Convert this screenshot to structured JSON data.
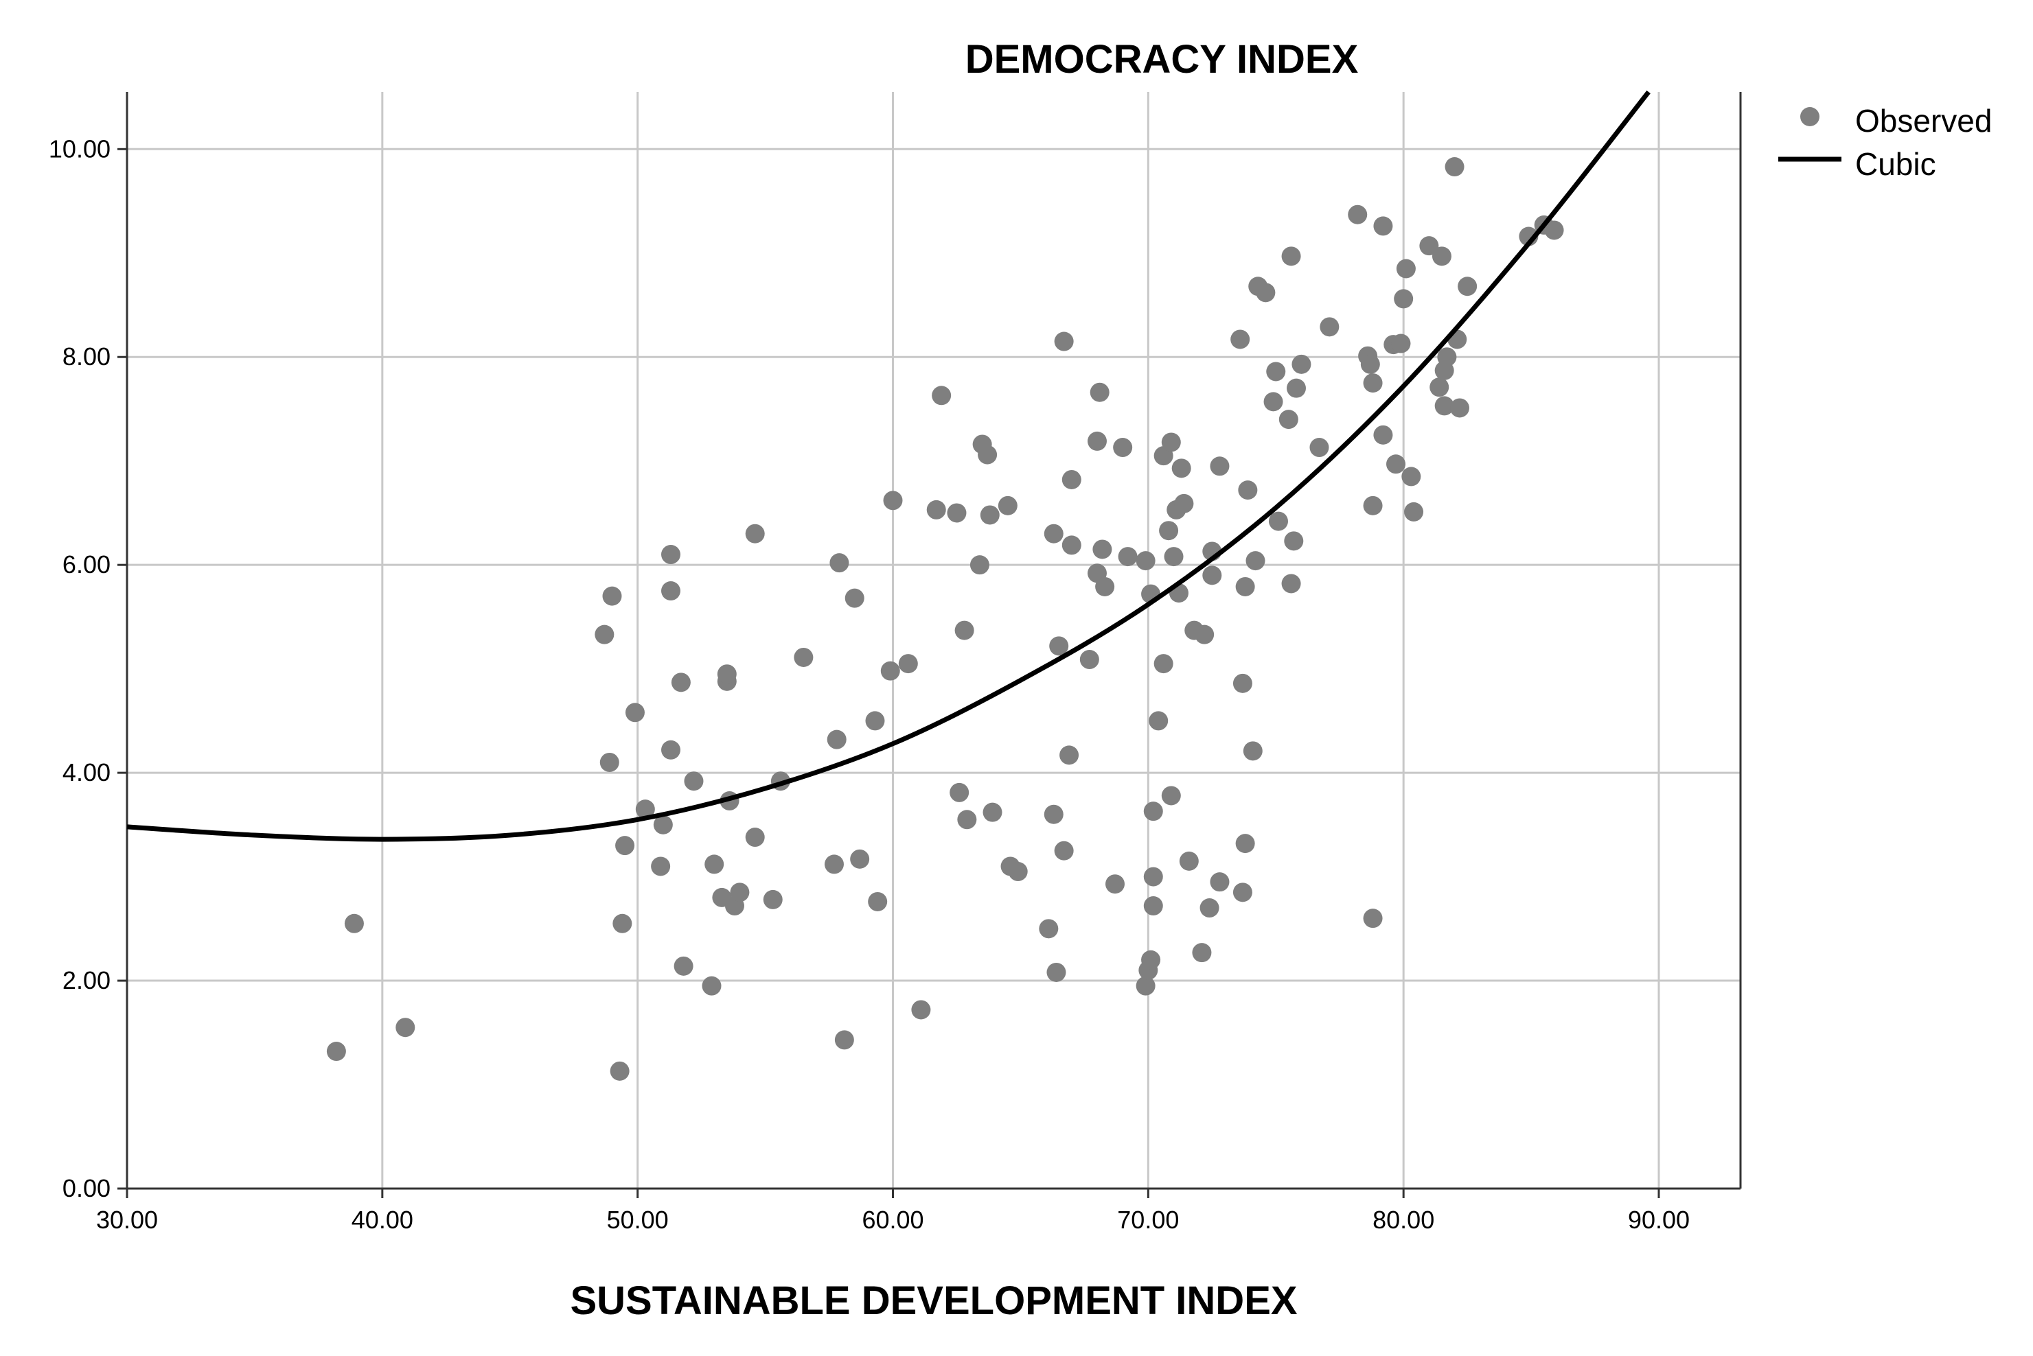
{
  "chart_data": {
    "type": "scatter",
    "title": "DEMOCRACY INDEX",
    "xlabel": "SUSTAINABLE DEVELOPMENT INDEX",
    "ylabel": "DEMOCRACY INDEX",
    "xlim": [
      30,
      93.2
    ],
    "ylim": [
      0,
      10.55
    ],
    "x_ticks": [
      "30.00",
      "40.00",
      "50.00",
      "60.00",
      "70.00",
      "80.00",
      "90.00"
    ],
    "x_tick_values": [
      30,
      40,
      50,
      60,
      70,
      80,
      90
    ],
    "y_ticks": [
      "0.00",
      "2.00",
      "4.00",
      "6.00",
      "8.00",
      "10.00"
    ],
    "y_tick_values": [
      0,
      2,
      4,
      6,
      8,
      10
    ],
    "grid": true,
    "legend": {
      "position": "top-right",
      "items": [
        {
          "label": "Observed",
          "kind": "marker"
        },
        {
          "label": "Cubic",
          "kind": "line"
        }
      ]
    },
    "colors": {
      "points": "#7f7f7f",
      "line": "#000000",
      "grid": "#c8c8c8",
      "axis": "#333333"
    },
    "series": [
      {
        "name": "Observed",
        "points": [
          [
            38.2,
            1.32
          ],
          [
            38.9,
            2.55
          ],
          [
            40.9,
            1.55
          ],
          [
            48.7,
            5.33
          ],
          [
            48.9,
            4.1
          ],
          [
            49.0,
            5.7
          ],
          [
            49.3,
            1.13
          ],
          [
            49.4,
            2.55
          ],
          [
            49.5,
            3.3
          ],
          [
            49.9,
            4.58
          ],
          [
            50.3,
            3.65
          ],
          [
            50.9,
            3.1
          ],
          [
            51.0,
            3.5
          ],
          [
            51.3,
            6.1
          ],
          [
            51.3,
            5.75
          ],
          [
            51.3,
            4.22
          ],
          [
            51.7,
            4.87
          ],
          [
            51.8,
            2.14
          ],
          [
            52.2,
            3.92
          ],
          [
            52.9,
            1.95
          ],
          [
            53.0,
            3.12
          ],
          [
            53.3,
            2.8
          ],
          [
            53.5,
            4.88
          ],
          [
            53.5,
            4.95
          ],
          [
            53.6,
            3.73
          ],
          [
            53.8,
            2.72
          ],
          [
            54.0,
            2.85
          ],
          [
            54.6,
            3.38
          ],
          [
            54.6,
            6.3
          ],
          [
            55.3,
            2.78
          ],
          [
            55.6,
            3.92
          ],
          [
            56.5,
            5.11
          ],
          [
            57.7,
            3.12
          ],
          [
            57.8,
            4.32
          ],
          [
            57.9,
            6.02
          ],
          [
            58.1,
            1.43
          ],
          [
            58.5,
            5.68
          ],
          [
            58.7,
            3.17
          ],
          [
            59.3,
            4.5
          ],
          [
            59.4,
            2.76
          ],
          [
            59.9,
            4.98
          ],
          [
            60.0,
            6.62
          ],
          [
            60.6,
            5.05
          ],
          [
            61.1,
            1.72
          ],
          [
            61.7,
            6.53
          ],
          [
            61.9,
            7.63
          ],
          [
            62.5,
            6.5
          ],
          [
            62.6,
            3.81
          ],
          [
            62.8,
            5.37
          ],
          [
            62.9,
            3.55
          ],
          [
            63.4,
            6.0
          ],
          [
            63.5,
            7.16
          ],
          [
            63.7,
            7.06
          ],
          [
            63.8,
            6.48
          ],
          [
            63.9,
            3.62
          ],
          [
            64.5,
            6.57
          ],
          [
            64.6,
            3.1
          ],
          [
            64.9,
            3.05
          ],
          [
            66.1,
            2.5
          ],
          [
            66.3,
            6.3
          ],
          [
            66.3,
            3.6
          ],
          [
            66.4,
            2.08
          ],
          [
            66.5,
            5.22
          ],
          [
            66.7,
            8.15
          ],
          [
            66.7,
            3.25
          ],
          [
            66.9,
            4.17
          ],
          [
            67.0,
            6.82
          ],
          [
            67.0,
            6.19
          ],
          [
            67.7,
            5.09
          ],
          [
            68.0,
            7.19
          ],
          [
            68.0,
            5.92
          ],
          [
            68.1,
            7.66
          ],
          [
            68.2,
            6.15
          ],
          [
            68.3,
            5.79
          ],
          [
            68.7,
            2.93
          ],
          [
            69.0,
            7.13
          ],
          [
            69.2,
            6.08
          ],
          [
            69.9,
            6.04
          ],
          [
            69.9,
            1.95
          ],
          [
            70.0,
            2.1
          ],
          [
            70.1,
            2.2
          ],
          [
            70.1,
            5.72
          ],
          [
            70.2,
            3.0
          ],
          [
            70.2,
            2.72
          ],
          [
            70.2,
            3.63
          ],
          [
            70.4,
            4.5
          ],
          [
            70.6,
            7.05
          ],
          [
            70.6,
            5.05
          ],
          [
            70.8,
            6.33
          ],
          [
            70.9,
            3.78
          ],
          [
            70.9,
            7.18
          ],
          [
            71.0,
            6.08
          ],
          [
            71.1,
            6.53
          ],
          [
            71.2,
            5.73
          ],
          [
            71.3,
            6.93
          ],
          [
            71.4,
            6.59
          ],
          [
            71.6,
            3.15
          ],
          [
            71.8,
            5.37
          ],
          [
            72.1,
            2.27
          ],
          [
            72.2,
            5.33
          ],
          [
            72.4,
            2.7
          ],
          [
            72.5,
            6.13
          ],
          [
            72.5,
            5.9
          ],
          [
            72.8,
            6.95
          ],
          [
            72.8,
            2.95
          ],
          [
            73.6,
            8.17
          ],
          [
            73.7,
            4.86
          ],
          [
            73.7,
            2.85
          ],
          [
            73.8,
            3.32
          ],
          [
            73.8,
            5.79
          ],
          [
            73.9,
            6.72
          ],
          [
            74.1,
            4.21
          ],
          [
            74.2,
            6.04
          ],
          [
            74.3,
            8.68
          ],
          [
            74.6,
            8.62
          ],
          [
            74.9,
            7.57
          ],
          [
            75.0,
            7.86
          ],
          [
            75.1,
            6.42
          ],
          [
            75.5,
            7.4
          ],
          [
            75.6,
            5.82
          ],
          [
            75.6,
            8.97
          ],
          [
            75.7,
            6.23
          ],
          [
            75.8,
            7.7
          ],
          [
            76.0,
            7.93
          ],
          [
            76.7,
            7.13
          ],
          [
            77.1,
            8.29
          ],
          [
            78.2,
            9.37
          ],
          [
            78.6,
            8.01
          ],
          [
            78.7,
            7.93
          ],
          [
            78.8,
            7.75
          ],
          [
            78.8,
            6.57
          ],
          [
            78.8,
            2.6
          ],
          [
            79.2,
            7.25
          ],
          [
            79.2,
            9.26
          ],
          [
            79.6,
            8.12
          ],
          [
            79.7,
            6.97
          ],
          [
            79.9,
            8.13
          ],
          [
            80.0,
            8.56
          ],
          [
            80.1,
            8.85
          ],
          [
            80.3,
            6.85
          ],
          [
            80.4,
            6.51
          ],
          [
            81.0,
            9.07
          ],
          [
            81.4,
            7.71
          ],
          [
            81.5,
            8.97
          ],
          [
            81.6,
            7.87
          ],
          [
            81.6,
            7.53
          ],
          [
            81.7,
            8.0
          ],
          [
            82.0,
            9.83
          ],
          [
            82.1,
            8.17
          ],
          [
            82.2,
            7.51
          ],
          [
            82.5,
            8.68
          ],
          [
            84.9,
            9.16
          ],
          [
            85.5,
            9.27
          ],
          [
            85.9,
            9.22
          ]
        ]
      },
      {
        "name": "Cubic",
        "curve": [
          [
            30,
            3.48
          ],
          [
            35,
            3.4
          ],
          [
            40,
            3.36
          ],
          [
            45,
            3.4
          ],
          [
            50,
            3.55
          ],
          [
            55,
            3.85
          ],
          [
            60,
            4.28
          ],
          [
            65,
            4.89
          ],
          [
            70,
            5.62
          ],
          [
            75,
            6.55
          ],
          [
            80,
            7.72
          ],
          [
            85,
            9.12
          ],
          [
            89.6,
            10.55
          ]
        ]
      }
    ]
  }
}
